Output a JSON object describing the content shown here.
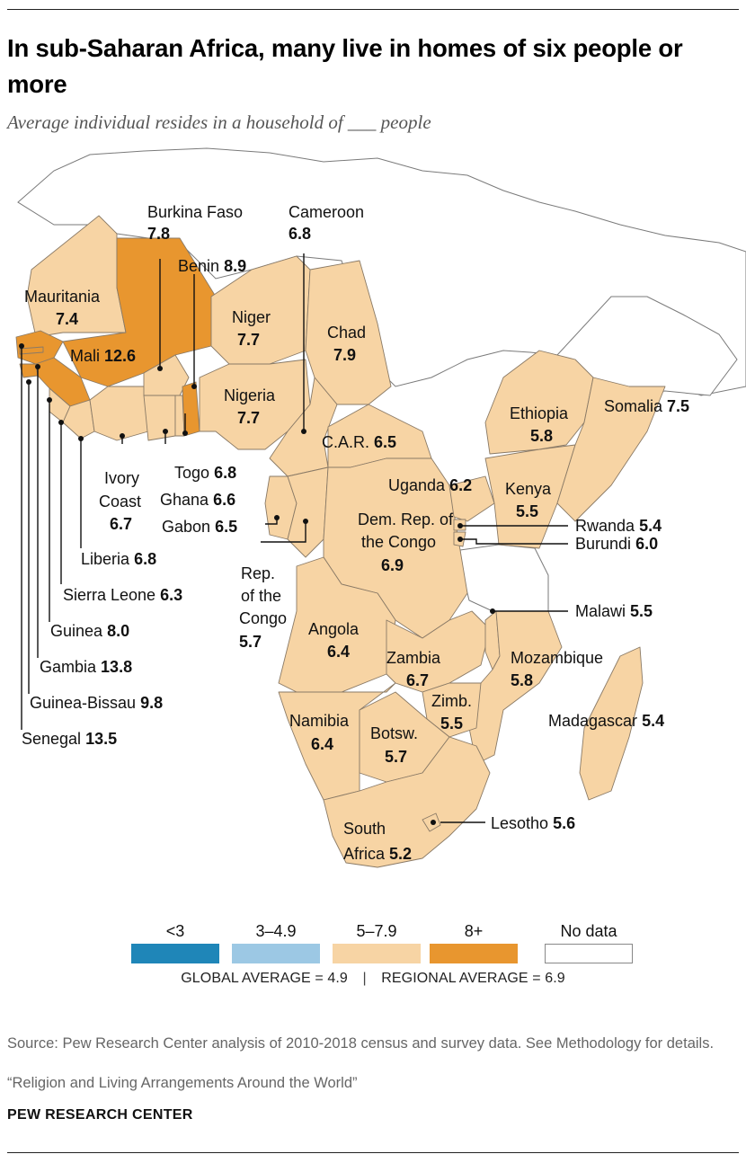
{
  "title": "In sub-Saharan Africa, many live in homes of six people or more",
  "subtitle": "Average individual resides in a household of ___ people",
  "countries": {
    "burkina_faso": {
      "name": "Burkina Faso",
      "value": "7.8"
    },
    "cameroon": {
      "name": "Cameroon",
      "value": "6.8"
    },
    "benin": {
      "name": "Benin",
      "value": "8.9"
    },
    "mauritania": {
      "name": "Mauritania",
      "value": "7.4"
    },
    "niger": {
      "name": "Niger",
      "value": "7.7"
    },
    "chad": {
      "name": "Chad",
      "value": "7.9"
    },
    "mali": {
      "name": "Mali",
      "value": "12.6"
    },
    "nigeria": {
      "name": "Nigeria",
      "value": "7.7"
    },
    "ethiopia": {
      "name": "Ethiopia",
      "value": "5.8"
    },
    "somalia": {
      "name": "Somalia",
      "value": "7.5"
    },
    "car": {
      "name": "C.A.R.",
      "value": "6.5"
    },
    "ivory_coast": {
      "name_line1": "Ivory",
      "name_line2": "Coast",
      "value": "6.7"
    },
    "togo": {
      "name": "Togo",
      "value": "6.8"
    },
    "ghana": {
      "name": "Ghana",
      "value": "6.6"
    },
    "gabon": {
      "name": "Gabon",
      "value": "6.5"
    },
    "uganda": {
      "name": "Uganda",
      "value": "6.2"
    },
    "kenya": {
      "name": "Kenya",
      "value": "5.5"
    },
    "drc": {
      "name_line1": "Dem. Rep. of",
      "name_line2": "the Congo",
      "value": "6.9"
    },
    "rwanda": {
      "name": "Rwanda",
      "value": "5.4"
    },
    "burundi": {
      "name": "Burundi",
      "value": "6.0"
    },
    "liberia": {
      "name": "Liberia",
      "value": "6.8"
    },
    "rep_congo": {
      "name_line1": "Rep.",
      "name_line2": "of the",
      "name_line3": "Congo",
      "value": "5.7"
    },
    "sierra_leone": {
      "name": "Sierra Leone",
      "value": "6.3"
    },
    "malawi": {
      "name": "Malawi",
      "value": "5.5"
    },
    "guinea": {
      "name": "Guinea",
      "value": "8.0"
    },
    "angola": {
      "name": "Angola",
      "value": "6.4"
    },
    "zambia": {
      "name": "Zambia",
      "value": "6.7"
    },
    "mozambique": {
      "name": "Mozambique",
      "value": "5.8"
    },
    "gambia": {
      "name": "Gambia",
      "value": "13.8"
    },
    "zimbabwe": {
      "name": "Zimb.",
      "value": "5.5"
    },
    "guinea_bissau": {
      "name": "Guinea-Bissau",
      "value": "9.8"
    },
    "madagascar": {
      "name": "Madagascar",
      "value": "5.4"
    },
    "namibia": {
      "name": "Namibia",
      "value": "6.4"
    },
    "botswana": {
      "name": "Botsw.",
      "value": "5.7"
    },
    "senegal": {
      "name": "Senegal",
      "value": "13.5"
    },
    "lesotho": {
      "name": "Lesotho",
      "value": "5.6"
    },
    "south_africa": {
      "name_line1": "South",
      "name_line2": "Africa",
      "value": "5.2"
    }
  },
  "legend": [
    {
      "label": "<3",
      "color": "#1f86b8"
    },
    {
      "label": "3–4.9",
      "color": "#9cc8e4"
    },
    {
      "label": "5–7.9",
      "color": "#f7d4a4"
    },
    {
      "label": "8+",
      "color": "#e8962f"
    },
    {
      "label": "No data",
      "color": "#ffffff"
    }
  ],
  "averages": {
    "global": "GLOBAL AVERAGE = 4.9",
    "separator": "|",
    "regional": "REGIONAL AVERAGE = 6.9"
  },
  "source": "Source: Pew Research Center analysis of 2010-2018 census and survey data. See Methodology for details.",
  "report": "“Religion and Living Arrangements Around the World”",
  "brand": "PEW RESEARCH CENTER"
}
